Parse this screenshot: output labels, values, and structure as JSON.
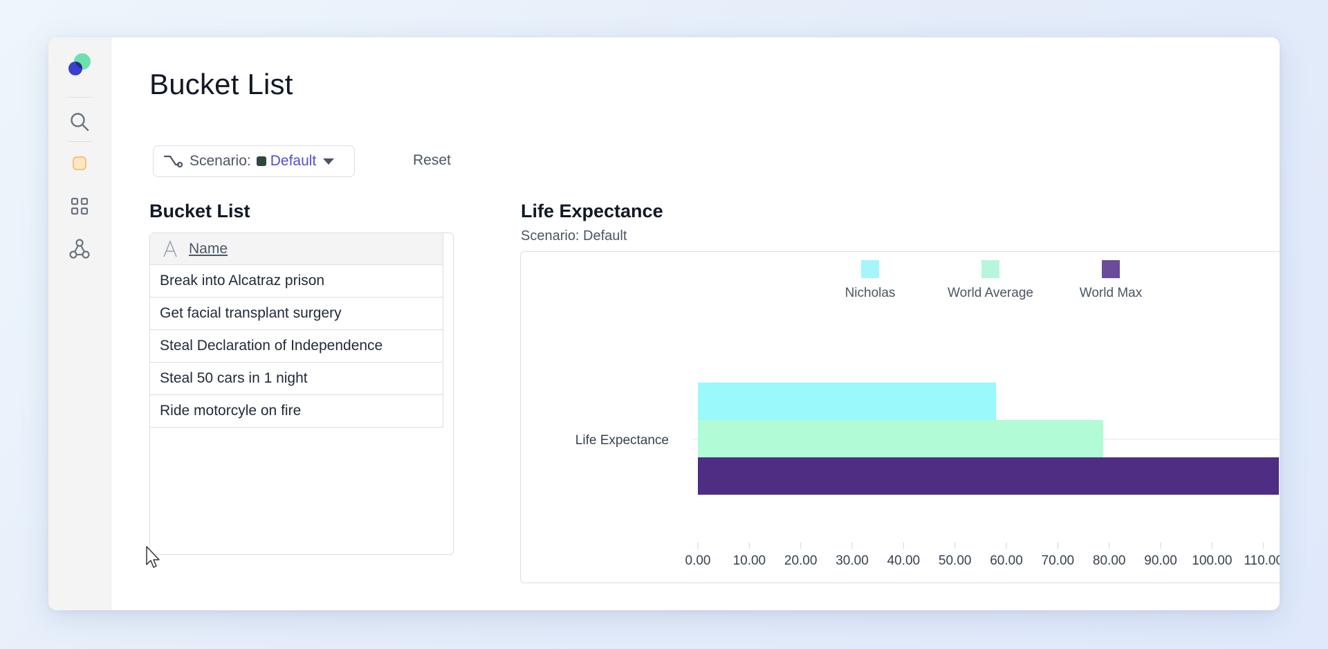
{
  "page": {
    "title": "Bucket List"
  },
  "sidebar": {
    "icons": [
      "logo-icon",
      "search-icon",
      "app-square-icon",
      "grid-icon",
      "hub-network-icon"
    ]
  },
  "toolbar": {
    "scenario_label": "Scenario:",
    "scenario_value": "Default",
    "scenario_color": "#2f4640",
    "reset_label": "Reset"
  },
  "bucket_list": {
    "title": "Bucket List",
    "column_header": "Name",
    "rows": [
      "Break into Alcatraz prison",
      "Get facial transplant surgery",
      "Steal Declaration of Independence",
      "Steal 50 cars in 1 night",
      "Ride motorcyle on fire"
    ]
  },
  "life_chart": {
    "title": "Life Expectance",
    "subtitle": "Scenario: Default"
  },
  "chart_data": {
    "type": "bar",
    "orientation": "horizontal",
    "categories": [
      "Life Expectance"
    ],
    "series": [
      {
        "name": "Nicholas",
        "values": [
          58.0
        ],
        "color": "#99f9fb"
      },
      {
        "name": "World Average",
        "values": [
          78.8
        ],
        "color": "#b1fbd7"
      },
      {
        "name": "World Max",
        "values": [
          113.0
        ],
        "color": "#4f2d83"
      }
    ],
    "legend_swatch_colors": [
      "#a5f6fb",
      "#b8f6dc",
      "#6b4c9a"
    ],
    "xlim": [
      0,
      113
    ],
    "xticks": [
      "0.00",
      "10.00",
      "20.00",
      "30.00",
      "40.00",
      "50.00",
      "60.00",
      "70.00",
      "80.00",
      "90.00",
      "100.00",
      "110.00"
    ],
    "legend_position": "top-center",
    "grid": false
  }
}
